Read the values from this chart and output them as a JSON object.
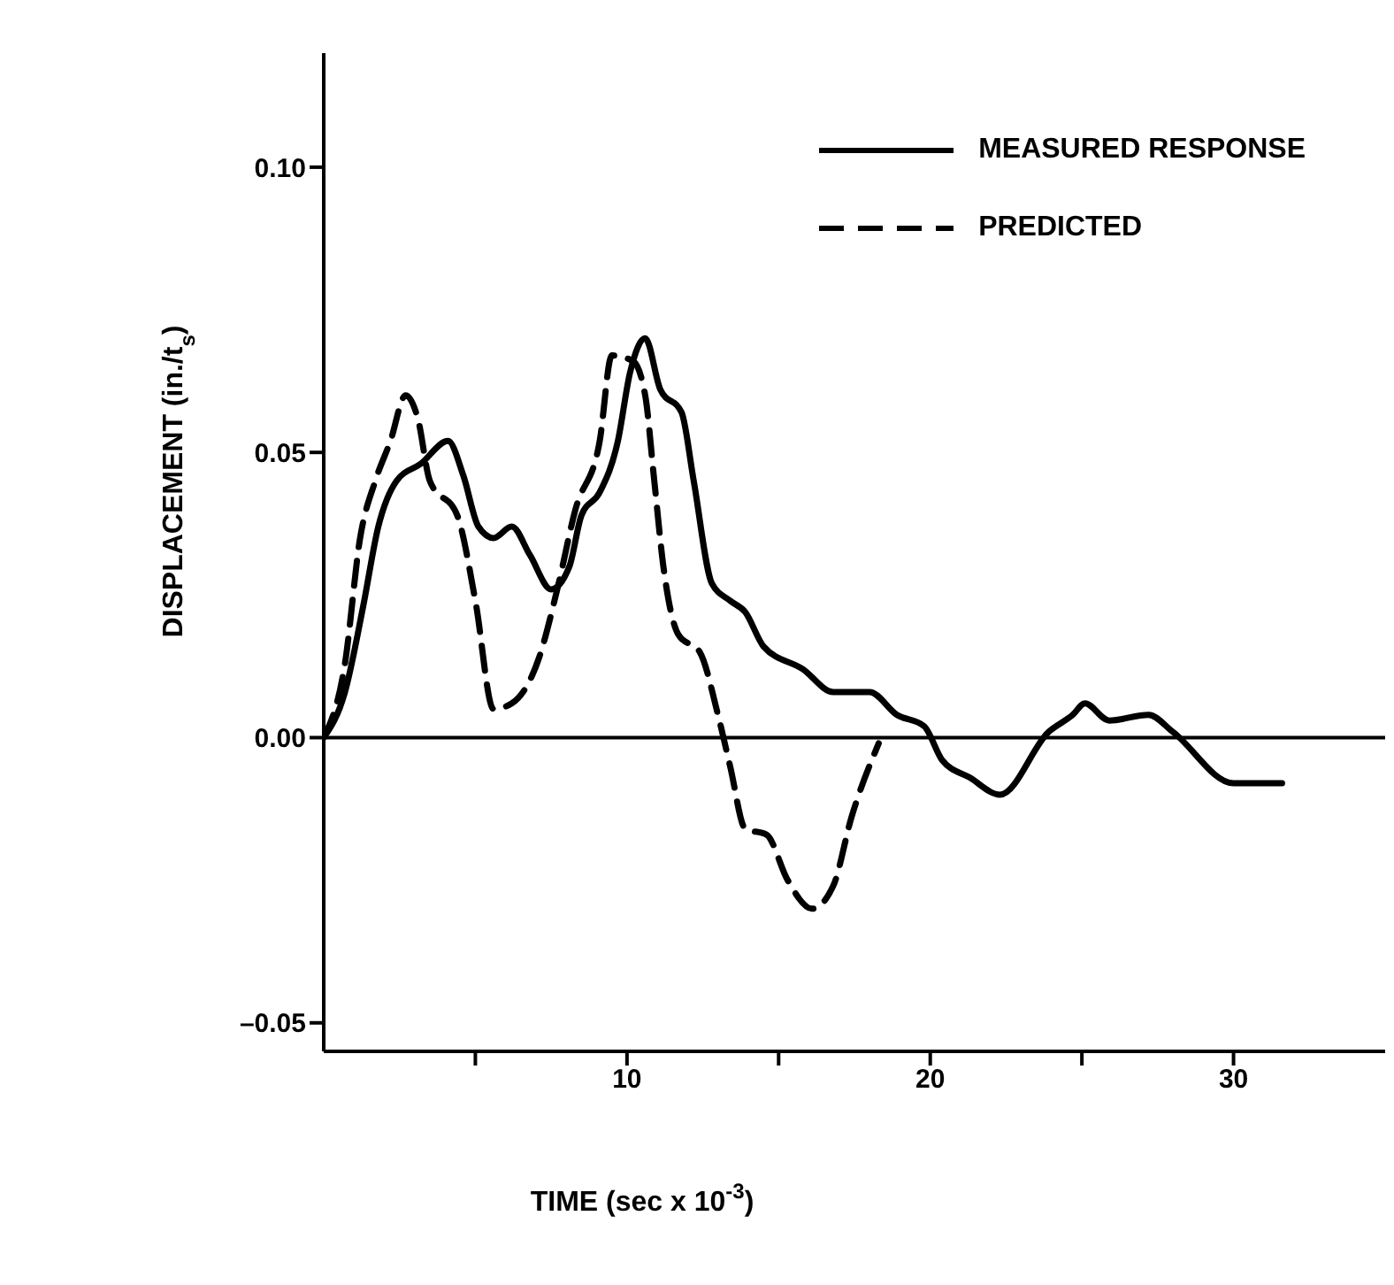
{
  "chart_data": {
    "type": "line",
    "xlabel": "TIME (sec x 10$^{-3}$)",
    "ylabel": "DISPLACEMENT (in./t$_{s}$)",
    "xlim": [
      0,
      35
    ],
    "xticks": [
      {
        "value": 5,
        "label": null
      },
      10,
      {
        "value": 15,
        "label": null
      },
      20,
      {
        "value": 25,
        "label": null
      },
      30
    ],
    "ylim": [
      -0.055,
      0.12
    ],
    "yticks": [
      {
        "value": -0.05,
        "label": "–0.05"
      },
      {
        "value": 0,
        "label": "0.00"
      },
      {
        "value": 0.05,
        "label": "0.05"
      },
      {
        "value": 0.1,
        "label": "0.10"
      }
    ],
    "grid": false,
    "legend": "top right",
    "marker": "none",
    "ref_lines": [
      {
        "axis": "y",
        "value": 0
      }
    ],
    "series": [
      {
        "name": "MEASURED RESPONSE",
        "color": "#000000",
        "line_style": "solid",
        "x": [
          0,
          0.7,
          1.3,
          1.8,
          2.4,
          3.2,
          4.1,
          4.6,
          5.1,
          5.6,
          6.2,
          6.8,
          7.5,
          8.1,
          8.5,
          9.1,
          9.7,
          10.1,
          10.6,
          11.1,
          11.8,
          12.2,
          12.8,
          13.4,
          13.9,
          14.5,
          15.8,
          16.8,
          18.0,
          18.9,
          19.8,
          20.4,
          21.3,
          22.3,
          23.9,
          24.7,
          25.1,
          25.9,
          27.2,
          28.0,
          30.0,
          31.6
        ],
        "values": [
          0,
          0.008,
          0.023,
          0.037,
          0.045,
          0.048,
          0.052,
          0.046,
          0.037,
          0.035,
          0.037,
          0.032,
          0.026,
          0.03,
          0.039,
          0.043,
          0.052,
          0.064,
          0.07,
          0.061,
          0.057,
          0.045,
          0.027,
          0.024,
          0.022,
          0.016,
          0.012,
          0.008,
          0.008,
          0.004,
          0.002,
          -0.004,
          -0.007,
          -0.01,
          0.001,
          0.004,
          0.006,
          0.003,
          0.004,
          0.001,
          -0.008,
          -0.008
        ]
      },
      {
        "name": "PREDICTED",
        "color": "#000000",
        "line_style": "dashed",
        "x": [
          0,
          0.7,
          1.2,
          1.7,
          2.2,
          2.7,
          3.1,
          3.5,
          4.4,
          5.0,
          5.6,
          6.2,
          7.1,
          7.7,
          8.3,
          9.1,
          9.5,
          10.2,
          10.6,
          10.9,
          11.2,
          11.7,
          12.4,
          13.0,
          13.4,
          13.9,
          14.6,
          15.3,
          16.1,
          16.8,
          17.4,
          18.3
        ],
        "values": [
          0,
          0.013,
          0.035,
          0.045,
          0.052,
          0.06,
          0.056,
          0.045,
          0.039,
          0.024,
          0.005,
          0.006,
          0.014,
          0.026,
          0.04,
          0.052,
          0.067,
          0.066,
          0.06,
          0.045,
          0.03,
          0.018,
          0.015,
          0.004,
          -0.005,
          -0.016,
          -0.017,
          -0.025,
          -0.03,
          -0.026,
          -0.014,
          -0.001
        ]
      }
    ]
  }
}
